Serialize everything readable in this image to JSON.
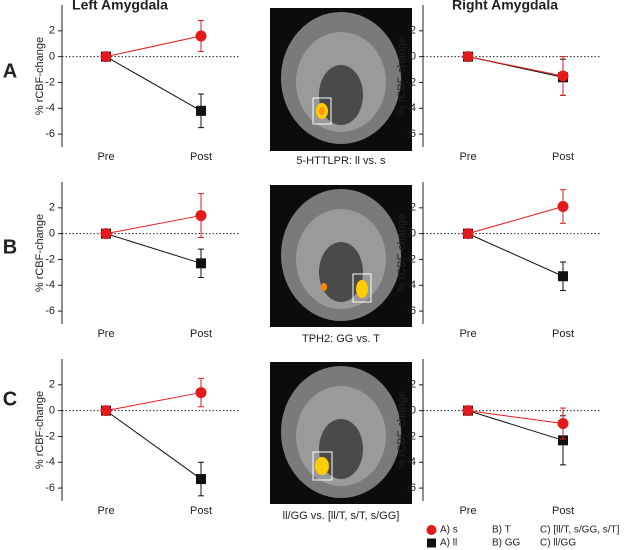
{
  "column_titles": [
    "Left Amygdala",
    "Right Amygdala"
  ],
  "row_labels": [
    "A",
    "B",
    "C"
  ],
  "image_captions": [
    "5-HTTLPR: ll vs. s",
    "TPH2: GG vs. T",
    "ll/GG vs. [ll/T, s/T, s/GG]"
  ],
  "legend": [
    {
      "color": "#e31a1c",
      "marker": "circle",
      "labels": [
        "A) s",
        "B) T",
        "C) [ll/T, s/GG, s/T]"
      ]
    },
    {
      "color": "#111111",
      "marker": "square",
      "labels": [
        "A) ll",
        "B) GG",
        "C) ll/GG"
      ]
    }
  ],
  "chart_data": [
    {
      "type": "line",
      "y_label": "% rCBF-change",
      "categories": [
        "Pre",
        "Post"
      ],
      "ylim": [
        -7,
        4
      ],
      "yticks": [
        2,
        0,
        -2,
        -4,
        -6
      ],
      "series": [
        {
          "color": "#111111",
          "marker": "square",
          "values": [
            0,
            -4.2
          ],
          "errors": [
            null,
            1.3
          ]
        },
        {
          "color": "#e31a1c",
          "marker": "circle",
          "values": [
            0,
            1.6
          ],
          "errors": [
            null,
            1.2
          ]
        }
      ]
    },
    {
      "type": "line",
      "y_label": "% rCBF-change",
      "categories": [
        "Pre",
        "Post"
      ],
      "ylim": [
        -7,
        4
      ],
      "yticks": [
        2,
        0,
        -2,
        -4,
        -6
      ],
      "series": [
        {
          "color": "#111111",
          "marker": "square",
          "values": [
            0,
            -1.6
          ],
          "errors": [
            null,
            1.4
          ]
        },
        {
          "color": "#e31a1c",
          "marker": "circle",
          "values": [
            0,
            -1.5
          ],
          "errors": [
            null,
            1.5
          ]
        }
      ]
    },
    {
      "type": "line",
      "y_label": "% rCBF-change",
      "categories": [
        "Pre",
        "Post"
      ],
      "ylim": [
        -7,
        4
      ],
      "yticks": [
        2,
        0,
        -2,
        -4,
        -6
      ],
      "series": [
        {
          "color": "#111111",
          "marker": "square",
          "values": [
            0,
            -2.3
          ],
          "errors": [
            null,
            1.1
          ]
        },
        {
          "color": "#e31a1c",
          "marker": "circle",
          "values": [
            0,
            1.4
          ],
          "errors": [
            null,
            1.7
          ]
        }
      ]
    },
    {
      "type": "line",
      "y_label": "% rCBF-change",
      "categories": [
        "Pre",
        "Post"
      ],
      "ylim": [
        -7,
        4
      ],
      "yticks": [
        2,
        0,
        -2,
        -4,
        -6
      ],
      "series": [
        {
          "color": "#111111",
          "marker": "square",
          "values": [
            0,
            -3.3
          ],
          "errors": [
            null,
            1.1
          ]
        },
        {
          "color": "#e31a1c",
          "marker": "circle",
          "values": [
            0,
            2.1
          ],
          "errors": [
            null,
            1.3
          ]
        }
      ]
    },
    {
      "type": "line",
      "y_label": "% rCBF-change",
      "categories": [
        "Pre",
        "Post"
      ],
      "ylim": [
        -7,
        4
      ],
      "yticks": [
        2,
        0,
        -2,
        -4,
        -6
      ],
      "series": [
        {
          "color": "#111111",
          "marker": "square",
          "values": [
            0,
            -5.3
          ],
          "errors": [
            null,
            1.3
          ]
        },
        {
          "color": "#e31a1c",
          "marker": "circle",
          "values": [
            0,
            1.4
          ],
          "errors": [
            null,
            1.1
          ]
        }
      ]
    },
    {
      "type": "line",
      "y_label": "% rCBF-change",
      "categories": [
        "Pre",
        "Post"
      ],
      "ylim": [
        -7,
        4
      ],
      "yticks": [
        2,
        0,
        -2,
        -4,
        -6
      ],
      "series": [
        {
          "color": "#111111",
          "marker": "square",
          "values": [
            0,
            -2.3
          ],
          "errors": [
            null,
            1.9
          ]
        },
        {
          "color": "#e31a1c",
          "marker": "circle",
          "values": [
            0,
            -1.0
          ],
          "errors": [
            null,
            1.2
          ]
        }
      ]
    }
  ]
}
